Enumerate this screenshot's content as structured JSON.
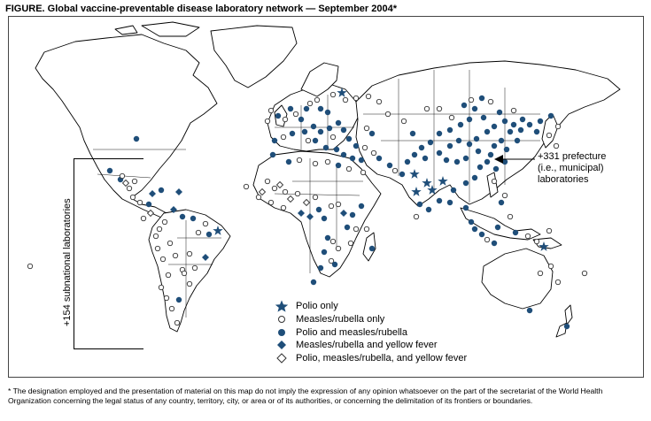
{
  "title": "FIGURE. Global vaccine-preventable disease laboratory network — September 2004*",
  "legend": [
    {
      "symbol": "star",
      "label": "Polio only"
    },
    {
      "symbol": "open-circle",
      "label": "Measles/rubella only"
    },
    {
      "symbol": "filled-circle",
      "label": "Polio and measles/rubella"
    },
    {
      "symbol": "filled-diamond",
      "label": "Measles/rubella and yellow fever"
    },
    {
      "symbol": "open-diamond",
      "label": "Polio, measles/rubella, and yellow fever"
    }
  ],
  "annotations": {
    "prefecture_line1": "+331 prefecture",
    "prefecture_line2": "(i.e., municipal)",
    "prefecture_line3": "laboratories",
    "subnational": "+154 subnational laboratories"
  },
  "footnote": "* The designation employed and the presentation of material on this map do not imply the expression of any opinion whatsoever on the part of the secretariat of the World Health Organization concerning the legal status of any country, territory, city, or area or of its authorities, or concerning the delimitation of its frontiers or boundaries.",
  "colors": {
    "marker": "#1f4e79",
    "outline": "#000000",
    "background": "#ffffff"
  },
  "icons": {
    "star": "star-icon",
    "open_circle": "open-circle-icon",
    "filled_circle": "filled-circle-icon",
    "filled_diamond": "filled-diamond-icon",
    "open_diamond": "open-diamond-icon",
    "arrow": "arrow-icon"
  }
}
